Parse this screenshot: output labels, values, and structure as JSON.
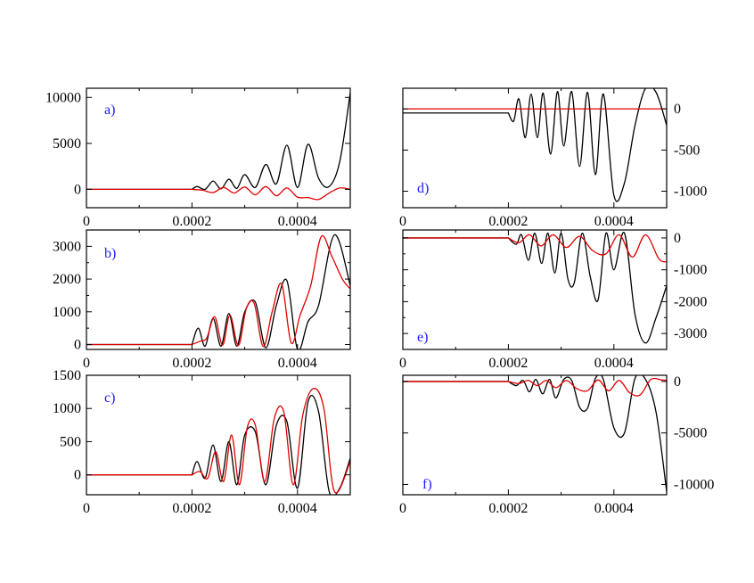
{
  "colors": {
    "black_curve": "#000000",
    "red_curve": "#e00000",
    "panel_label": "#1a1aff",
    "axis": "#000000"
  },
  "chart_data": [
    {
      "id": "a",
      "type": "line",
      "panel_label": "a)",
      "y_axis_side": "left",
      "xlim": [
        0,
        0.0005
      ],
      "ylim": [
        -2000,
        11000
      ],
      "x_ticks": [
        0,
        0.0002,
        0.0004
      ],
      "x_tick_labels": [
        "0",
        "0.0002",
        "0.0004"
      ],
      "y_ticks": [
        0,
        5000,
        10000
      ],
      "y_tick_labels": [
        "0",
        "5000",
        "10000"
      ],
      "onset": 0.0002,
      "series": [
        {
          "color_key": "black_curve",
          "x": [
            0.0002,
            0.00021,
            0.000225,
            0.00024,
            0.000255,
            0.00027,
            0.000285,
            0.0003,
            0.00032,
            0.00034,
            0.00036,
            0.00038,
            0.0004,
            0.00042,
            0.00044,
            0.00046,
            0.00048,
            0.0005
          ],
          "y": [
            0,
            300,
            0,
            900,
            50,
            1100,
            100,
            1600,
            200,
            2700,
            600,
            4800,
            200,
            4900,
            1200,
            300,
            3000,
            10500
          ]
        },
        {
          "color_key": "red_curve",
          "x": [
            0.0002,
            0.00022,
            0.00024,
            0.00026,
            0.00028,
            0.0003,
            0.00032,
            0.00034,
            0.00036,
            0.00038,
            0.0004,
            0.00042,
            0.00044,
            0.00046,
            0.00048,
            0.0005
          ],
          "y": [
            0,
            -100,
            -350,
            200,
            -400,
            250,
            -600,
            300,
            -700,
            150,
            -850,
            -900,
            -1100,
            -400,
            150,
            0
          ]
        }
      ]
    },
    {
      "id": "b",
      "type": "line",
      "panel_label": "b)",
      "y_axis_side": "left",
      "xlim": [
        0,
        0.0005
      ],
      "ylim": [
        -150,
        3500
      ],
      "x_ticks": [
        0,
        0.0002,
        0.0004
      ],
      "x_tick_labels": [
        "0",
        "0.0002",
        "0.0004"
      ],
      "y_ticks": [
        0,
        1000,
        2000,
        3000
      ],
      "y_tick_labels": [
        "0",
        "1000",
        "2000",
        "3000"
      ],
      "y_minor_ticks": [
        500,
        1500,
        2500
      ],
      "onset": 0.0002,
      "series": [
        {
          "color_key": "black_curve",
          "x": [
            0.0002,
            0.000212,
            0.000225,
            0.00024,
            0.000255,
            0.00027,
            0.000285,
            0.0003,
            0.00032,
            0.00034,
            0.00036,
            0.00038,
            0.0004,
            0.00042,
            0.00044,
            0.00047,
            0.0005
          ],
          "y": [
            0,
            500,
            -50,
            800,
            -50,
            950,
            -50,
            1000,
            1300,
            -100,
            1200,
            1950,
            -150,
            700,
            1200,
            3350,
            1800
          ]
        },
        {
          "color_key": "red_curve",
          "x": [
            0.0002,
            0.000215,
            0.000228,
            0.000243,
            0.000258,
            0.000272,
            0.000288,
            0.000303,
            0.000318,
            0.000335,
            0.000352,
            0.00037,
            0.000388,
            0.000405,
            0.000425,
            0.000445,
            0.000465,
            0.000485,
            0.0005
          ],
          "y": [
            0,
            100,
            200,
            850,
            -20,
            900,
            -30,
            1100,
            1250,
            -60,
            1000,
            1850,
            50,
            900,
            1800,
            3300,
            2700,
            2000,
            1700
          ]
        }
      ]
    },
    {
      "id": "c",
      "type": "line",
      "panel_label": "c)",
      "y_axis_side": "left",
      "xlim": [
        0,
        0.0005
      ],
      "ylim": [
        -300,
        1500
      ],
      "x_ticks": [
        0,
        0.0002,
        0.0004
      ],
      "x_tick_labels": [
        "0",
        "0.0002",
        "0.0004"
      ],
      "y_ticks": [
        0,
        500,
        1000,
        1500
      ],
      "y_tick_labels": [
        "0",
        "500",
        "1000",
        "1500"
      ],
      "onset": 0.0002,
      "series": [
        {
          "color_key": "black_curve",
          "x": [
            0.0002,
            0.00021,
            0.000225,
            0.00024,
            0.000255,
            0.00027,
            0.000285,
            0.0003,
            0.00032,
            0.00034,
            0.00036,
            0.00038,
            0.0004,
            0.00042,
            0.00044,
            0.00046,
            0.00048,
            0.0005
          ],
          "y": [
            0,
            200,
            -50,
            450,
            -100,
            500,
            -150,
            600,
            650,
            -150,
            750,
            800,
            -200,
            1100,
            950,
            -250,
            -200,
            250
          ]
        },
        {
          "color_key": "red_curve",
          "x": [
            0.0002,
            0.000215,
            0.00023,
            0.000245,
            0.00026,
            0.000275,
            0.00029,
            0.000305,
            0.00032,
            0.000338,
            0.000356,
            0.000374,
            0.000392,
            0.00041,
            0.00043,
            0.00045,
            0.00047,
            0.0005
          ],
          "y": [
            0,
            50,
            -50,
            350,
            -100,
            600,
            -150,
            720,
            750,
            -100,
            850,
            950,
            -150,
            900,
            1300,
            1000,
            -250,
            200
          ]
        }
      ]
    },
    {
      "id": "d",
      "type": "line",
      "panel_label": "d)",
      "y_axis_side": "right",
      "xlim": [
        0,
        0.0005
      ],
      "ylim": [
        -1200,
        250
      ],
      "x_ticks": [
        0,
        0.0002,
        0.0004
      ],
      "x_tick_labels": [
        "0",
        "0.0002",
        "0.0004"
      ],
      "y_ticks": [
        0,
        -500,
        -1000
      ],
      "y_tick_labels": [
        "0",
        "-500",
        "-1000"
      ],
      "onset": 0.0002,
      "series": [
        {
          "color_key": "black_curve",
          "x": [
            0.0002,
            0.00021,
            0.00022,
            0.000232,
            0.000243,
            0.000255,
            0.000266,
            0.00028,
            0.000293,
            0.000305,
            0.00032,
            0.000335,
            0.00035,
            0.000365,
            0.00038,
            0.0004,
            0.00042,
            0.00044,
            0.00046,
            0.00048,
            0.0005
          ],
          "y": [
            -50,
            -150,
            120,
            -350,
            180,
            -350,
            190,
            -550,
            210,
            -450,
            210,
            -700,
            200,
            -800,
            180,
            -1050,
            -900,
            -200,
            250,
            200,
            -200
          ]
        },
        {
          "color_key": "red_curve",
          "x": [
            0.0002,
            0.0003,
            0.0004,
            0.0005
          ],
          "y": [
            0,
            0,
            0,
            0
          ]
        }
      ]
    },
    {
      "id": "e",
      "type": "line",
      "panel_label": "e)",
      "y_axis_side": "right",
      "xlim": [
        0,
        0.0005
      ],
      "ylim": [
        -3500,
        250
      ],
      "x_ticks": [
        0,
        0.0002,
        0.0004
      ],
      "x_tick_labels": [
        "0",
        "0.0002",
        "0.0004"
      ],
      "y_ticks": [
        0,
        -1000,
        -2000,
        -3000
      ],
      "y_tick_labels": [
        "0",
        "-1000",
        "-2000",
        "-3000"
      ],
      "y_minor_ticks": [
        -500,
        -1500,
        -2500
      ],
      "onset": 0.0002,
      "series": [
        {
          "color_key": "black_curve",
          "x": [
            0.0002,
            0.000215,
            0.000225,
            0.000238,
            0.00025,
            0.000263,
            0.000275,
            0.000288,
            0.0003,
            0.000313,
            0.000325,
            0.00034,
            0.000355,
            0.00037,
            0.000385,
            0.0004,
            0.00042,
            0.00044,
            0.00046,
            0.00048,
            0.0005
          ],
          "y": [
            0,
            -200,
            100,
            -700,
            150,
            -800,
            150,
            -1100,
            150,
            -1300,
            -1400,
            150,
            -1200,
            -1950,
            150,
            -1000,
            150,
            -2400,
            -3300,
            -2500,
            -1500
          ]
        },
        {
          "color_key": "red_curve",
          "x": [
            0.0002,
            0.00022,
            0.00024,
            0.000262,
            0.000285,
            0.00031,
            0.000335,
            0.00036,
            0.000385,
            0.00041,
            0.000435,
            0.00046,
            0.000485,
            0.0005
          ],
          "y": [
            0,
            -150,
            100,
            -250,
            100,
            -300,
            50,
            -400,
            -500,
            100,
            -600,
            100,
            -650,
            -750
          ]
        }
      ]
    },
    {
      "id": "f",
      "type": "line",
      "panel_label": "f)",
      "y_axis_side": "right",
      "xlim": [
        0,
        0.0005
      ],
      "ylim": [
        -11000,
        600
      ],
      "x_ticks": [
        0,
        0.0002,
        0.0004
      ],
      "x_tick_labels": [
        "0",
        "0.0002",
        "0.0004"
      ],
      "y_ticks": [
        0,
        -5000,
        -10000
      ],
      "y_tick_labels": [
        "0",
        "-5000",
        "-10000"
      ],
      "onset": 0.0002,
      "series": [
        {
          "color_key": "black_curve",
          "x": [
            0.0002,
            0.000215,
            0.000228,
            0.00024,
            0.000252,
            0.000265,
            0.000278,
            0.00029,
            0.000305,
            0.00032,
            0.000335,
            0.00035,
            0.000365,
            0.00038,
            0.0004,
            0.00042,
            0.00044,
            0.00046,
            0.00048,
            0.0005
          ],
          "y": [
            0,
            -400,
            100,
            -1000,
            200,
            -1200,
            200,
            -1600,
            200,
            100,
            -2500,
            -2600,
            300,
            200,
            -4500,
            -5000,
            300,
            200,
            -3000,
            -10700
          ]
        },
        {
          "color_key": "red_curve",
          "x": [
            0.0002,
            0.00022,
            0.000238,
            0.000255,
            0.000272,
            0.00029,
            0.00031,
            0.00033,
            0.00035,
            0.00037,
            0.00039,
            0.00041,
            0.00043,
            0.00045,
            0.00047,
            0.00049,
            0.0005
          ],
          "y": [
            0,
            -200,
            100,
            -400,
            100,
            -600,
            100,
            -700,
            -900,
            150,
            -900,
            100,
            -1100,
            -1300,
            200,
            150,
            100
          ]
        }
      ]
    }
  ]
}
